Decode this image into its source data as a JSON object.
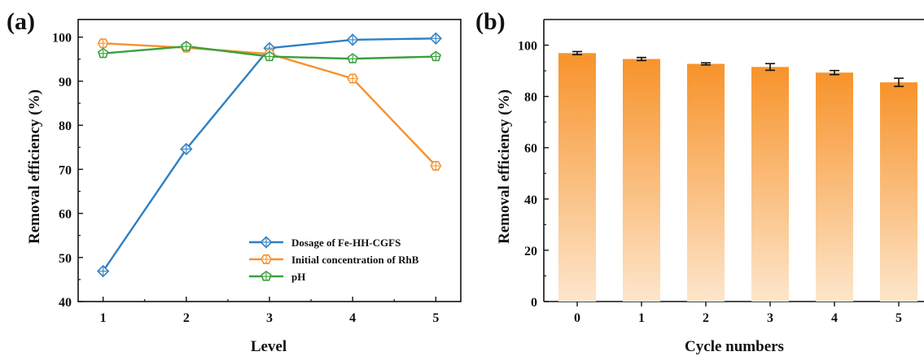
{
  "colors": {
    "dosage": "#2f7fc1",
    "rhb": "#f5922f",
    "ph": "#3aa13a",
    "bar_top": "#f7932b",
    "bar_bottom": "#fde6cc",
    "axis": "#111111"
  },
  "chart_data": [
    {
      "panel_label": "(a)",
      "type": "line",
      "xlabel": "Level",
      "ylabel": "Removal efficiency (%)",
      "x": [
        1,
        2,
        3,
        4,
        5
      ],
      "xlim": [
        0.7,
        5.3
      ],
      "ylim": [
        40,
        104
      ],
      "yticks": [
        40,
        50,
        60,
        70,
        80,
        90,
        100
      ],
      "grid": false,
      "legend_position": "bottom-right",
      "series": [
        {
          "name": "Dosage of Fe-HH-CGFS",
          "marker": "diamond",
          "color": "#2f7fc1",
          "values": [
            46.9,
            74.6,
            97.5,
            99.4,
            99.7
          ]
        },
        {
          "name": "Initial concentration of RhB",
          "marker": "hexagon",
          "color": "#f5922f",
          "values": [
            98.6,
            97.6,
            96.2,
            90.6,
            70.8
          ]
        },
        {
          "name": "pH",
          "marker": "pentagon",
          "color": "#3aa13a",
          "values": [
            96.3,
            97.9,
            95.6,
            95.1,
            95.6
          ]
        }
      ]
    },
    {
      "panel_label": "(b)",
      "type": "bar",
      "xlabel": "Cycle numbers",
      "ylabel": "Removal efficiency (%)",
      "categories": [
        "0",
        "1",
        "2",
        "3",
        "4",
        "5"
      ],
      "values": [
        96.9,
        94.6,
        92.7,
        91.5,
        89.3,
        85.5
      ],
      "errors": [
        0.6,
        0.6,
        0.4,
        1.3,
        0.8,
        1.6
      ],
      "ylim": [
        0,
        110
      ],
      "yticks": [
        0,
        20,
        40,
        60,
        80,
        100
      ],
      "grid": false,
      "fill": "vertical gradient orange to light peach"
    }
  ]
}
